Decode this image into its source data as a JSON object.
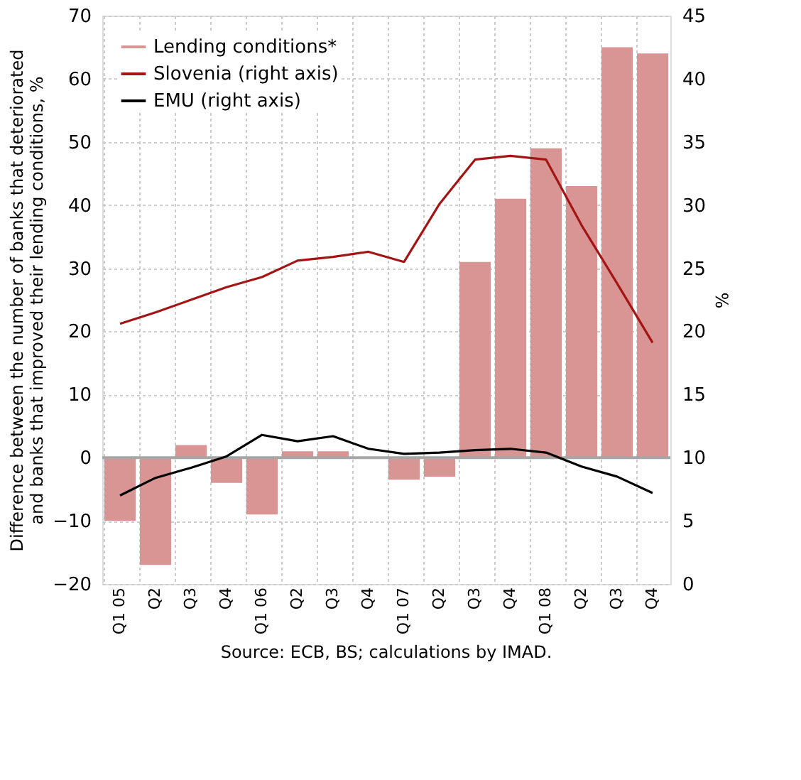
{
  "chart_data": {
    "type": "bar",
    "ylabel": "Difference between the number of banks that deteriorated and banks that improved their lending conditions, %",
    "y2label": "%",
    "categories": [
      "Q1 05",
      "Q2",
      "Q3",
      "Q4",
      "Q1 06",
      "Q2",
      "Q3",
      "Q4",
      "Q1 07",
      "Q2",
      "Q3",
      "Q4",
      "Q1 08",
      "Q2",
      "Q3",
      "Q4"
    ],
    "series": [
      {
        "name": "Lending conditions*",
        "color": "#d99594",
        "values": [
          -10,
          -17,
          2,
          -4,
          -9,
          1,
          1,
          0,
          -3.5,
          -3,
          31,
          41,
          49,
          43,
          65,
          64
        ]
      },
      {
        "name": "Slovenia (right axis)",
        "type": "line",
        "axis": "y2",
        "color": "#a31515",
        "values": [
          20.6,
          21.5,
          22.5,
          23.5,
          24.3,
          25.6,
          25.9,
          26.3,
          25.5,
          30.1,
          33.6,
          33.9,
          33.6,
          28.4,
          23.8,
          19.1
        ]
      },
      {
        "name": "EMU (right axis)",
        "type": "line",
        "axis": "y2",
        "color": "#000000",
        "values": [
          7.0,
          8.4,
          9.2,
          10.1,
          11.8,
          11.3,
          11.7,
          10.7,
          10.3,
          10.4,
          10.6,
          10.7,
          10.4,
          9.3,
          8.5,
          7.2
        ]
      }
    ],
    "ylim": [
      -20,
      70
    ],
    "yticks": [
      -20,
      -10,
      0,
      10,
      20,
      30,
      40,
      50,
      60,
      70
    ],
    "y2lim": [
      0,
      45
    ],
    "y2ticks": [
      0,
      5,
      10,
      15,
      20,
      25,
      30,
      35,
      40,
      45
    ],
    "grid": true,
    "legend": "top left",
    "annotations": [
      "Source: ECB, BS; calculations by IMAD."
    ]
  }
}
